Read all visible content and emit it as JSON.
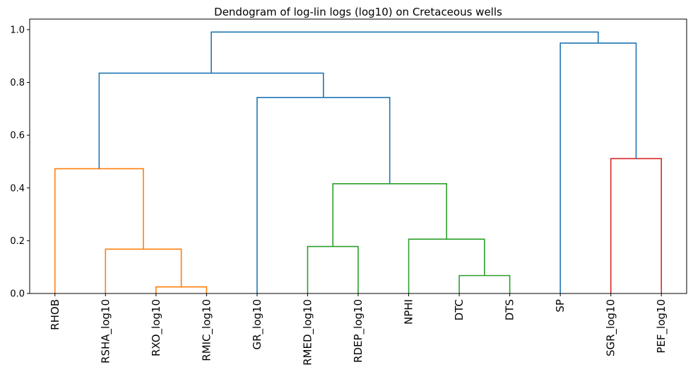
{
  "chart_data": {
    "type": "dendrogram",
    "title": "Dendogram of log-lin logs (log10) on Cretaceous wells",
    "xlabel": "",
    "ylabel": "",
    "ylim": [
      0,
      1.04
    ],
    "yticks": [
      0.0,
      0.2,
      0.4,
      0.6,
      0.8,
      1.0
    ],
    "ytick_labels": [
      "0.0",
      "0.2",
      "0.4",
      "0.6",
      "0.8",
      "1.0"
    ],
    "grid": false,
    "leaves": [
      "RHOB",
      "RSHA_log10",
      "RXO_log10",
      "RMIC_log10",
      "GR_log10",
      "RMED_log10",
      "RDEP_log10",
      "NPHI",
      "DTC",
      "DTS",
      "SP",
      "SGR_log10",
      "PEF_log10"
    ],
    "colors": {
      "orange": "#ff7f0e",
      "green": "#2ca02c",
      "red": "#d62728",
      "blue": "#1f77b4"
    },
    "links": [
      {
        "left": "RXO_log10",
        "right": "RMIC_log10",
        "height": 0.025,
        "color": "orange"
      },
      {
        "left": "RSHA_log10",
        "right": 0,
        "height": 0.168,
        "color": "orange"
      },
      {
        "left": "RHOB",
        "right": 1,
        "height": 0.473,
        "color": "orange"
      },
      {
        "left": "DTC",
        "right": "DTS",
        "height": 0.068,
        "color": "green"
      },
      {
        "left": "NPHI",
        "right": 3,
        "height": 0.206,
        "color": "green"
      },
      {
        "left": "RMED_log10",
        "right": "RDEP_log10",
        "height": 0.178,
        "color": "green"
      },
      {
        "left": 5,
        "right": 4,
        "height": 0.416,
        "color": "green"
      },
      {
        "left": "GR_log10",
        "right": 6,
        "height": 0.743,
        "color": "blue"
      },
      {
        "left": 2,
        "right": 7,
        "height": 0.835,
        "color": "blue"
      },
      {
        "left": "SGR_log10",
        "right": "PEF_log10",
        "height": 0.511,
        "color": "red"
      },
      {
        "left": "SP",
        "right": 9,
        "height": 0.949,
        "color": "blue"
      },
      {
        "left": 8,
        "right": 10,
        "height": 0.991,
        "color": "blue"
      }
    ]
  }
}
